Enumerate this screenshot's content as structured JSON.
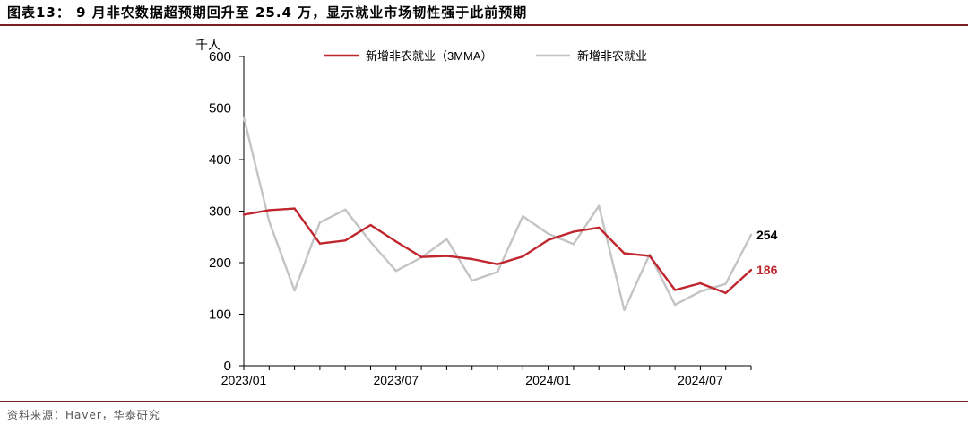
{
  "figure": {
    "title": "图表13： 9 月非农数据超预期回升至 25.4 万，显示就业市场韧性强于此前预期",
    "source": "资料来源：Haver，华泰研究"
  },
  "chart_data": {
    "type": "line",
    "yunit": "千人",
    "ylim": [
      0,
      600
    ],
    "yticks": [
      0,
      100,
      200,
      300,
      400,
      500,
      600
    ],
    "x": [
      "2023/01",
      "2023/02",
      "2023/03",
      "2023/04",
      "2023/05",
      "2023/06",
      "2023/07",
      "2023/08",
      "2023/09",
      "2023/10",
      "2023/11",
      "2023/12",
      "2024/01",
      "2024/02",
      "2024/03",
      "2024/04",
      "2024/05",
      "2024/06",
      "2024/07",
      "2024/08",
      "2024/09"
    ],
    "xticks": [
      "2023/01",
      "2023/07",
      "2024/01",
      "2024/07"
    ],
    "legend_position": "top",
    "grid": false,
    "series": [
      {
        "name": "新增非农就业（3MMA）",
        "color": "#c0262d",
        "values": [
          293,
          302,
          305,
          237,
          243,
          273,
          241,
          211,
          213,
          207,
          197,
          212,
          244,
          260,
          268,
          218,
          213,
          147,
          160,
          141,
          186
        ],
        "end_label": "186",
        "end_label_color": "#c0262d"
      },
      {
        "name": "新增非农就业",
        "color": "#c4c4c4",
        "values": [
          482,
          280,
          146,
          278,
          303,
          240,
          184,
          210,
          246,
          165,
          182,
          290,
          256,
          236,
          310,
          108,
          216,
          118,
          144,
          159,
          254
        ],
        "end_label": "254",
        "end_label_color": "#000000"
      }
    ]
  }
}
